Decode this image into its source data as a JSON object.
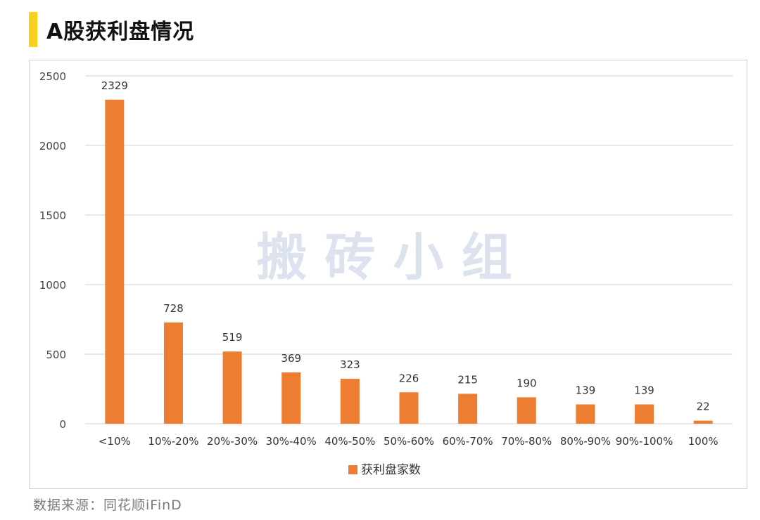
{
  "page": {
    "title": "A股获利盘情况",
    "source": "数据来源：同花顺iFinD",
    "watermark": "搬 砖 小 组"
  },
  "colors": {
    "bar": "#ED7D31",
    "title_accent": "#F9D11C",
    "grid": "#D9D9D9",
    "watermark": "#DCE3EF"
  },
  "chart_data": {
    "type": "bar",
    "categories": [
      "<10%",
      "10%-20%",
      "20%-30%",
      "30%-40%",
      "40%-50%",
      "50%-60%",
      "60%-70%",
      "70%-80%",
      "80%-90%",
      "90%-100%",
      "100%"
    ],
    "series": [
      {
        "name": "获利盘家数",
        "values": [
          2329,
          728,
          519,
          369,
          323,
          226,
          215,
          190,
          139,
          139,
          22
        ]
      }
    ],
    "yticks": [
      0,
      500,
      1000,
      1500,
      2000,
      2500
    ],
    "ylim": [
      0,
      2500
    ],
    "legend_position": "bottom",
    "grid": true
  }
}
